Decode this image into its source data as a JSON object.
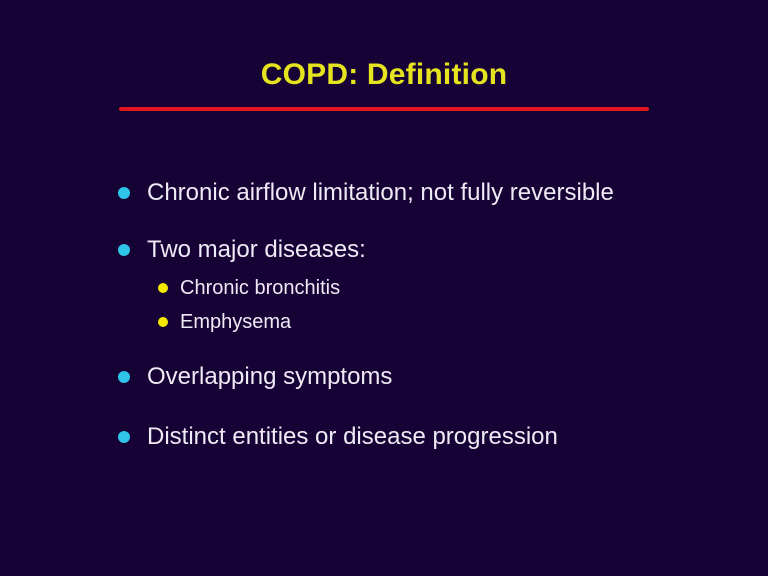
{
  "slide": {
    "title": "COPD: Definition",
    "bullets": [
      {
        "level": 1,
        "text": "Chronic airflow limitation; not fully reversible"
      },
      {
        "level": 1,
        "text": "Two major diseases:"
      },
      {
        "level": 2,
        "text": "Chronic bronchitis"
      },
      {
        "level": 2,
        "text": "Emphysema"
      },
      {
        "level": 1,
        "text": "Overlapping symptoms"
      },
      {
        "level": 1,
        "text": "Distinct entities or disease progression"
      }
    ],
    "colors": {
      "background": "#160234",
      "title": "#e6e31f",
      "divider": "#e11422",
      "bullet": "#2ec5e9",
      "subBullet": "#f4e800",
      "text": "#eeeaf6"
    }
  }
}
